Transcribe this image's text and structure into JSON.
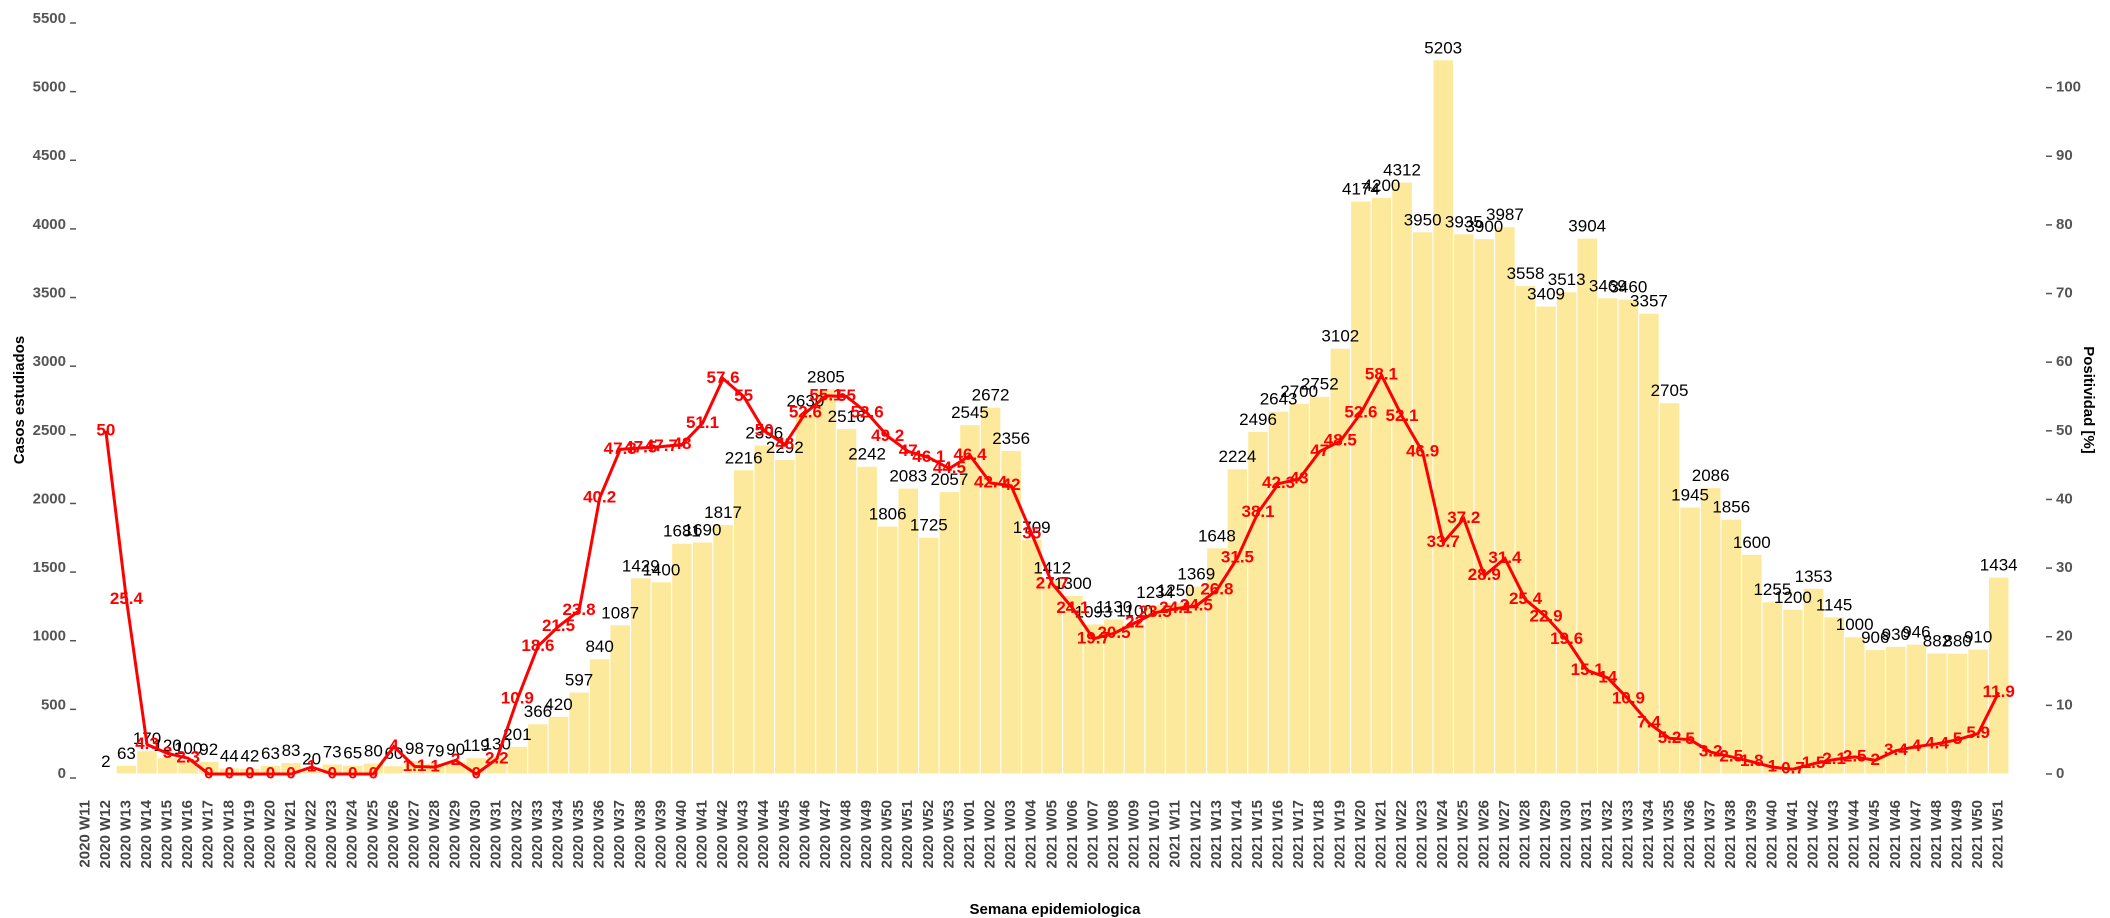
{
  "chart_data": {
    "type": "bar_line",
    "xlabel": "Semana epidemiologica",
    "ylabel": "Casos estudiados",
    "y2label": "Positividad [%]",
    "categories": [
      "2020 W11",
      "2020 W12",
      "2020 W13",
      "2020 W14",
      "2020 W15",
      "2020 W16",
      "2020 W17",
      "2020 W18",
      "2020 W19",
      "2020 W20",
      "2020 W21",
      "2020 W22",
      "2020 W23",
      "2020 W24",
      "2020 W25",
      "2020 W26",
      "2020 W27",
      "2020 W28",
      "2020 W29",
      "2020 W30",
      "2020 W31",
      "2020 W32",
      "2020 W33",
      "2020 W34",
      "2020 W35",
      "2020 W36",
      "2020 W37",
      "2020 W38",
      "2020 W39",
      "2020 W40",
      "2020 W41",
      "2020 W42",
      "2020 W43",
      "2020 W44",
      "2020 W45",
      "2020 W46",
      "2020 W47",
      "2020 W48",
      "2020 W49",
      "2020 W50",
      "2020 W51",
      "2020 W52",
      "2020 W53",
      "2021 W01",
      "2021 W02",
      "2021 W03",
      "2021 W04",
      "2021 W05",
      "2021 W06",
      "2021 W07",
      "2021 W08",
      "2021 W09",
      "2021 W10",
      "2021 W11",
      "2021 W12",
      "2021 W13",
      "2021 W14",
      "2021 W15",
      "2021 W16",
      "2021 W17",
      "2021 W18",
      "2021 W19",
      "2021 W20",
      "2021 W21",
      "2021 W22",
      "2021 W23",
      "2021 W24",
      "2021 W25",
      "2021 W26",
      "2021 W27",
      "2021 W28",
      "2021 W29",
      "2021 W30",
      "2021 W31",
      "2021 W32",
      "2021 W33",
      "2021 W34",
      "2021 W35",
      "2021 W36",
      "2021 W37",
      "2021 W38",
      "2021 W39",
      "2021 W40",
      "2021 W41",
      "2021 W42",
      "2021 W43",
      "2021 W44",
      "2021 W45",
      "2021 W46",
      "2021 W47",
      "2021 W48",
      "2021 W49",
      "2021 W50",
      "2021 W51"
    ],
    "series": [
      {
        "name": "Casos estudiados",
        "type": "bar",
        "color": "#fde99c",
        "values": [
          null,
          2,
          63,
          170,
          120,
          100,
          92,
          44,
          42,
          63,
          83,
          20,
          73,
          65,
          80,
          60,
          98,
          79,
          90,
          119,
          130,
          201,
          366,
          420,
          597,
          840,
          1087,
          1429,
          1400,
          1681,
          1690,
          1817,
          2216,
          2396,
          2292,
          2630,
          2805,
          2516,
          2242,
          1806,
          2083,
          1725,
          2057,
          2545,
          2672,
          2356,
          1709,
          1412,
          1300,
          1093,
          1130,
          1100,
          1234,
          1250,
          1369,
          1648,
          2224,
          2496,
          2643,
          2700,
          2752,
          3102,
          4174,
          4200,
          4312,
          3950,
          5203,
          3935,
          3900,
          3987,
          3558,
          3409,
          3513,
          3904,
          3469,
          3460,
          3357,
          2705,
          1945,
          2086,
          1856,
          1600,
          1255,
          1200,
          1353,
          1145,
          1000,
          906,
          930,
          946,
          882,
          880,
          910,
          1434
        ]
      },
      {
        "name": "Positividad",
        "type": "line",
        "axis": "y2",
        "color": "#ff0000",
        "values": [
          null,
          50,
          25.4,
          4.3,
          3,
          2.3,
          0,
          0,
          0,
          0,
          0,
          1,
          0,
          0,
          0,
          4,
          1.1,
          1,
          2,
          0,
          2.2,
          10.9,
          18.6,
          21.5,
          23.8,
          40.2,
          47.3,
          47.5,
          47.7,
          48,
          51.1,
          57.6,
          55,
          50,
          48,
          52.6,
          55.1,
          55,
          52.6,
          49.2,
          47,
          46.1,
          44.5,
          46.4,
          42.4,
          42,
          35,
          27.7,
          24.1,
          19.7,
          20.5,
          22,
          23.5,
          24.1,
          24.5,
          26.8,
          31.5,
          38.1,
          42.3,
          43,
          47,
          48.5,
          52.6,
          58.1,
          52.1,
          46.9,
          33.7,
          37.2,
          28.9,
          31.4,
          25.4,
          22.9,
          19.6,
          15.1,
          14,
          10.9,
          7.4,
          5.2,
          5,
          3.2,
          2.5,
          1.8,
          1,
          0.7,
          1.5,
          2.1,
          2.5,
          2,
          3.4,
          4,
          4.4,
          5,
          5.9,
          11.9
        ]
      }
    ],
    "ylim": [
      0,
      5500
    ],
    "yticks": [
      0,
      500,
      1000,
      1500,
      2000,
      2500,
      3000,
      3500,
      4000,
      4500,
      5000,
      5500
    ],
    "y2lim": [
      0,
      110
    ],
    "y2ticks": [
      0,
      10,
      20,
      30,
      40,
      50,
      60,
      70,
      80,
      90,
      100
    ]
  }
}
